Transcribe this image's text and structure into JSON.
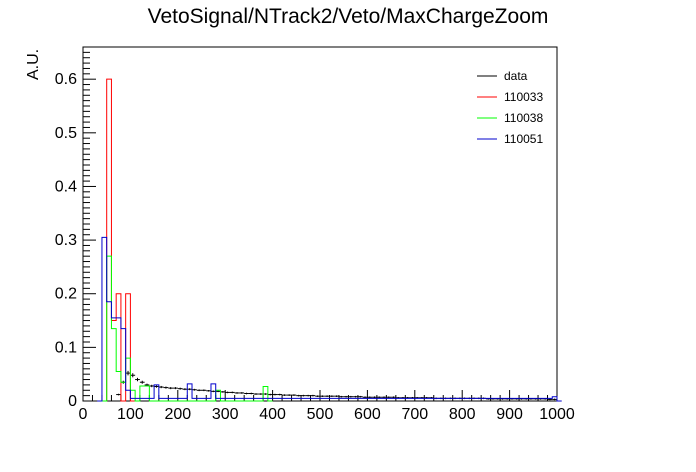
{
  "chart_data": {
    "type": "histogram",
    "title": "VetoSignal/NTrack2/Veto/MaxChargeZoom",
    "xlabel": "",
    "ylabel": "A.U.",
    "xlim": [
      0,
      1000
    ],
    "ylim": [
      0,
      0.66
    ],
    "bin_width": 10,
    "x_ticks": [
      "0",
      "100",
      "200",
      "300",
      "400",
      "500",
      "600",
      "700",
      "800",
      "900",
      "1000"
    ],
    "y_ticks": [
      "0",
      "0.1",
      "0.2",
      "0.3",
      "0.4",
      "0.5",
      "0.6"
    ],
    "legend_position": "top-right",
    "series": [
      {
        "name": "data",
        "color": "#000000",
        "style": "points-with-errors",
        "points": [
          [
            75,
            0.012
          ],
          [
            85,
            0.035
          ],
          [
            95,
            0.052
          ],
          [
            105,
            0.048
          ],
          [
            115,
            0.04
          ],
          [
            125,
            0.035
          ],
          [
            135,
            0.03
          ],
          [
            145,
            0.028
          ],
          [
            155,
            0.027
          ],
          [
            165,
            0.026
          ],
          [
            175,
            0.025
          ],
          [
            185,
            0.024
          ],
          [
            195,
            0.024
          ],
          [
            205,
            0.023
          ],
          [
            215,
            0.022
          ],
          [
            225,
            0.022
          ],
          [
            235,
            0.021
          ],
          [
            245,
            0.02
          ],
          [
            255,
            0.02
          ],
          [
            265,
            0.019
          ],
          [
            275,
            0.018
          ],
          [
            285,
            0.018
          ],
          [
            295,
            0.017
          ],
          [
            305,
            0.016
          ],
          [
            315,
            0.016
          ],
          [
            325,
            0.015
          ],
          [
            335,
            0.015
          ],
          [
            345,
            0.014
          ],
          [
            355,
            0.014
          ],
          [
            365,
            0.013
          ],
          [
            375,
            0.013
          ],
          [
            385,
            0.013
          ],
          [
            395,
            0.012
          ],
          [
            405,
            0.012
          ],
          [
            415,
            0.012
          ],
          [
            425,
            0.011
          ],
          [
            435,
            0.011
          ],
          [
            445,
            0.011
          ],
          [
            455,
            0.01
          ],
          [
            465,
            0.01
          ],
          [
            475,
            0.01
          ],
          [
            485,
            0.01
          ],
          [
            495,
            0.009
          ],
          [
            505,
            0.009
          ],
          [
            515,
            0.009
          ],
          [
            525,
            0.009
          ],
          [
            535,
            0.009
          ],
          [
            545,
            0.008
          ],
          [
            555,
            0.008
          ],
          [
            565,
            0.008
          ],
          [
            575,
            0.008
          ],
          [
            585,
            0.008
          ],
          [
            595,
            0.007
          ],
          [
            605,
            0.007
          ],
          [
            615,
            0.007
          ],
          [
            625,
            0.007
          ],
          [
            635,
            0.007
          ],
          [
            645,
            0.007
          ],
          [
            655,
            0.007
          ],
          [
            665,
            0.006
          ],
          [
            675,
            0.006
          ],
          [
            685,
            0.006
          ],
          [
            695,
            0.006
          ],
          [
            705,
            0.006
          ],
          [
            715,
            0.006
          ],
          [
            725,
            0.006
          ],
          [
            735,
            0.006
          ],
          [
            745,
            0.005
          ],
          [
            755,
            0.005
          ],
          [
            765,
            0.005
          ],
          [
            775,
            0.005
          ],
          [
            785,
            0.005
          ],
          [
            795,
            0.005
          ],
          [
            805,
            0.005
          ],
          [
            815,
            0.005
          ],
          [
            825,
            0.005
          ],
          [
            835,
            0.005
          ],
          [
            845,
            0.005
          ],
          [
            855,
            0.004
          ],
          [
            865,
            0.004
          ],
          [
            875,
            0.004
          ],
          [
            885,
            0.004
          ],
          [
            895,
            0.004
          ],
          [
            905,
            0.004
          ],
          [
            915,
            0.004
          ],
          [
            925,
            0.004
          ],
          [
            935,
            0.004
          ],
          [
            945,
            0.004
          ],
          [
            955,
            0.004
          ],
          [
            965,
            0.004
          ],
          [
            975,
            0.004
          ],
          [
            985,
            0.003
          ],
          [
            995,
            0.003
          ]
        ]
      },
      {
        "name": "110033",
        "color": "#ff0000",
        "style": "step",
        "bins": [
          [
            40,
            0
          ],
          [
            50,
            0.6
          ],
          [
            60,
            0.15
          ],
          [
            70,
            0.2
          ],
          [
            80,
            0
          ],
          [
            90,
            0.2
          ],
          [
            100,
            0
          ]
        ]
      },
      {
        "name": "110038",
        "color": "#00ff00",
        "style": "step",
        "bins": [
          [
            40,
            0
          ],
          [
            50,
            0.27
          ],
          [
            60,
            0.135
          ],
          [
            70,
            0.055
          ],
          [
            80,
            0.035
          ],
          [
            90,
            0.08
          ],
          [
            100,
            0.02
          ],
          [
            110,
            0
          ],
          [
            120,
            0.028
          ],
          [
            130,
            0.028
          ],
          [
            140,
            0
          ],
          [
            280,
            0.02
          ],
          [
            290,
            0
          ],
          [
            380,
            0.027
          ],
          [
            390,
            0
          ]
        ]
      },
      {
        "name": "110051",
        "color": "#0000cc",
        "style": "step",
        "bins": [
          [
            30,
            0
          ],
          [
            40,
            0.305
          ],
          [
            50,
            0.185
          ],
          [
            60,
            0.155
          ],
          [
            70,
            0.155
          ],
          [
            80,
            0.135
          ],
          [
            90,
            0.02
          ],
          [
            100,
            0.005
          ],
          [
            150,
            0.03
          ],
          [
            160,
            0.005
          ],
          [
            220,
            0.032
          ],
          [
            230,
            0.005
          ],
          [
            270,
            0.032
          ],
          [
            280,
            0.005
          ],
          [
            880,
            0.005
          ],
          [
            990,
            0.008
          ],
          [
            1000,
            0
          ]
        ]
      }
    ]
  }
}
